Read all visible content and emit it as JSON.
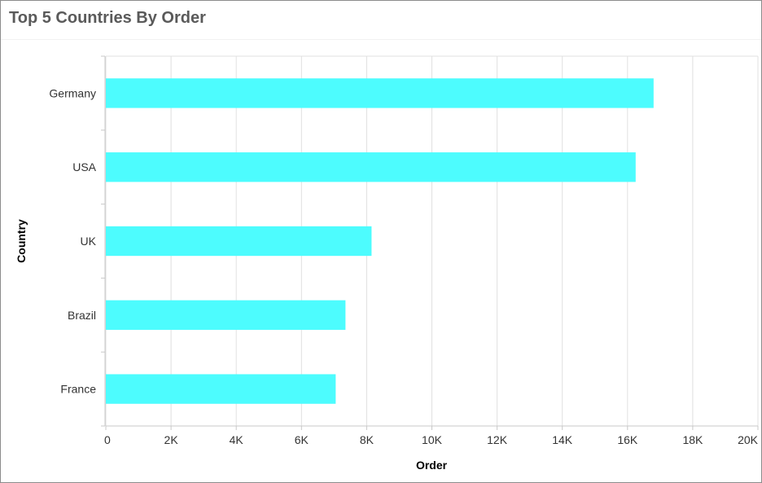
{
  "chart_data": {
    "type": "bar",
    "orientation": "horizontal",
    "title": "Top 5 Countries By Order",
    "xlabel": "Order",
    "ylabel": "Country",
    "categories": [
      "Germany",
      "USA",
      "UK",
      "Brazil",
      "France"
    ],
    "series": [
      {
        "values": [
          16800,
          16250,
          8150,
          7350,
          7050
        ],
        "color": "#4dfcfe"
      }
    ],
    "xlim": [
      0,
      20000
    ],
    "xticks": [
      0,
      2000,
      4000,
      6000,
      8000,
      10000,
      12000,
      14000,
      16000,
      18000,
      20000
    ],
    "xtick_labels": [
      "0",
      "2K",
      "4K",
      "6K",
      "8K",
      "10K",
      "12K",
      "14K",
      "16K",
      "18K",
      "20K"
    ],
    "grid": true,
    "legend": "none",
    "colors": {
      "bar": "#4dfcfe",
      "grid": "#e0e0e0",
      "axis": "#c8c8c8",
      "title": "#5a5a5a"
    }
  }
}
